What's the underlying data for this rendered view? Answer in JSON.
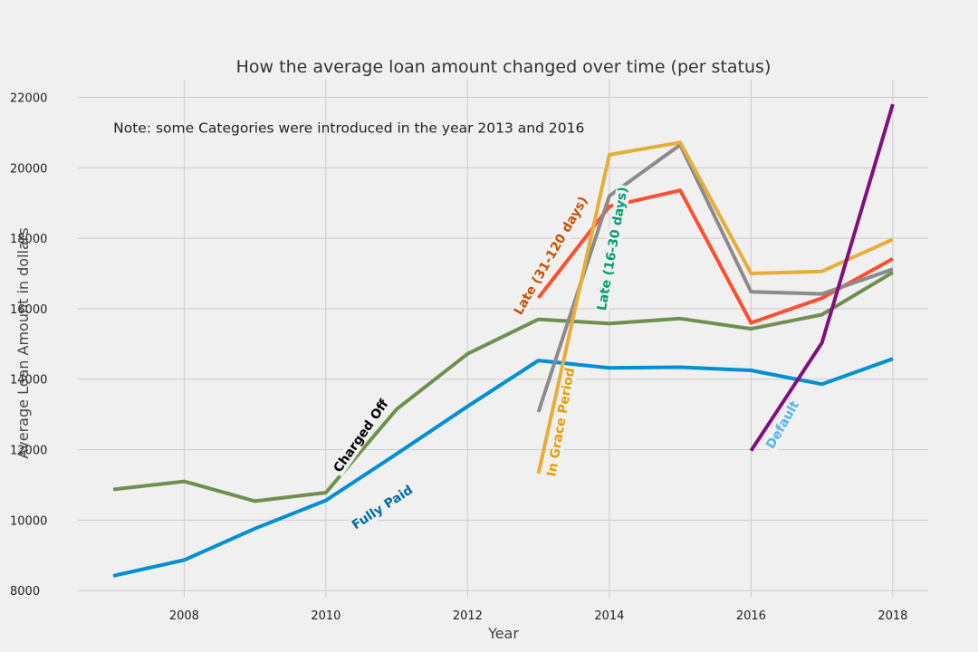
{
  "chart_data": {
    "type": "line",
    "title": "How the average loan amount changed over time (per status)",
    "xlabel": "Year",
    "ylabel": "Average Loan Amount in dollars",
    "xlim": [
      2006.5,
      2018.5
    ],
    "ylim": [
      7800,
      22500
    ],
    "xticks": [
      2008,
      2010,
      2012,
      2014,
      2016,
      2018
    ],
    "yticks": [
      8000,
      10000,
      12000,
      14000,
      16000,
      18000,
      20000,
      22000
    ],
    "grid": true,
    "annotations": [
      {
        "text": "Note: some Categories were introduced in the year 2013 and 2016",
        "x": 2007,
        "y": 21000
      }
    ],
    "series": [
      {
        "name": "Fully Paid",
        "color": "#008fd5",
        "x": [
          2007,
          2008,
          2009,
          2010,
          2011,
          2012,
          2013,
          2014,
          2015,
          2016,
          2017,
          2018
        ],
        "y": [
          8420,
          8870,
          9760,
          10560,
          11880,
          13230,
          14530,
          14320,
          14340,
          14250,
          13860,
          14580
        ],
        "label": {
          "text": "Fully Paid",
          "x": 2010.8,
          "y": 10350,
          "angle": -33,
          "color": "#006ba4"
        }
      },
      {
        "name": "Charged Off",
        "color": "#6d904f",
        "x": [
          2007,
          2008,
          2009,
          2010,
          2011,
          2012,
          2013,
          2014,
          2015,
          2016,
          2017,
          2018
        ],
        "y": [
          10870,
          11100,
          10540,
          10780,
          13150,
          14720,
          15700,
          15580,
          15720,
          15430,
          15830,
          17030
        ],
        "label": {
          "text": "Charged Off",
          "x": 2010.5,
          "y": 12380,
          "angle": -55,
          "color": "#000000"
        }
      },
      {
        "name": "Late (31-120 days)",
        "color": "#fc4f30",
        "x": [
          2013,
          2014,
          2015,
          2016,
          2017,
          2018
        ],
        "y": [
          16310,
          18900,
          19360,
          15600,
          16300,
          17420
        ],
        "label": {
          "text": "Late (31-120 days)",
          "x": 2013.18,
          "y": 17500,
          "angle": -60,
          "color": "#c85200"
        }
      },
      {
        "name": "Late (16-30 days)",
        "color": "#8b8b8b",
        "x": [
          2013,
          2014,
          2015,
          2016,
          2017,
          2018
        ],
        "y": [
          13070,
          19200,
          20650,
          16480,
          16420,
          17120
        ],
        "label": {
          "text": "Late (16-30 days)",
          "x": 2014.05,
          "y": 17700,
          "angle": -80,
          "color": "#009e73"
        }
      },
      {
        "name": "In Grace Period",
        "color": "#e5ae38",
        "x": [
          2013,
          2014,
          2015,
          2016,
          2017,
          2018
        ],
        "y": [
          11320,
          20370,
          20720,
          17000,
          17060,
          17970
        ],
        "label": {
          "text": "In Grace Period",
          "x": 2013.32,
          "y": 12780,
          "angle": -80,
          "color": "#e69f00"
        }
      },
      {
        "name": "Default",
        "color": "#810f7c",
        "x": [
          2016,
          2017,
          2018
        ],
        "y": [
          11970,
          15030,
          21800
        ],
        "label": {
          "text": "Default",
          "x": 2016.45,
          "y": 12700,
          "angle": -60,
          "color": "#56b4e9"
        }
      }
    ]
  }
}
